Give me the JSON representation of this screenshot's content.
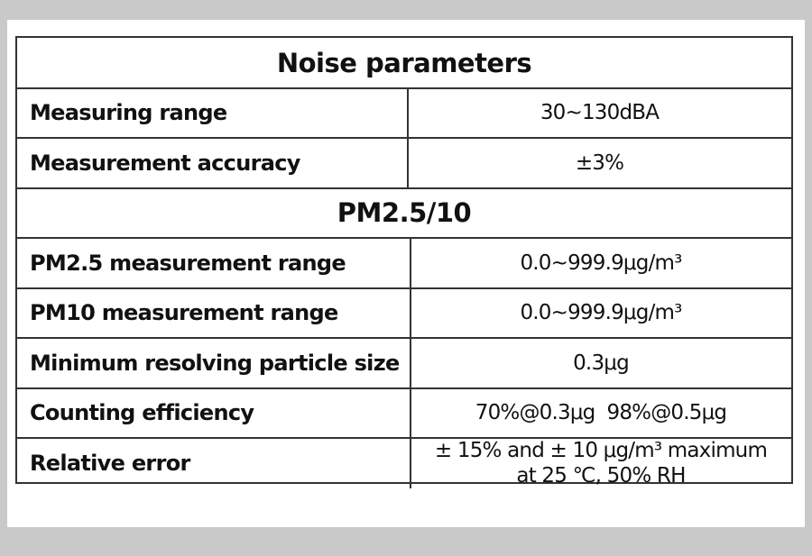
{
  "sections": [
    {
      "title": "Noise parameters",
      "rows": [
        {
          "label": "Measuring range",
          "value": [
            "30~130dBA"
          ]
        },
        {
          "label": "Measurement accuracy",
          "value": [
            "±3%"
          ]
        }
      ]
    },
    {
      "title": "PM2.5/10",
      "rows": [
        {
          "label": "PM2.5 measurement range",
          "value": [
            "0.0~999.9μg/m³"
          ]
        },
        {
          "label": "PM10 measurement range",
          "value": [
            "0.0~999.9μg/m³"
          ]
        },
        {
          "label": "Minimum resolving particle size",
          "value": [
            "0.3μg"
          ]
        },
        {
          "label": "Counting efficiency",
          "value": [
            "70%@0.3μg  98%@0.5μg"
          ]
        },
        {
          "label": "Relative error",
          "value": [
            "± 15% and ± 10 μg/m³ maximum",
            "at 25 ℃, 50% RH"
          ]
        }
      ]
    }
  ]
}
